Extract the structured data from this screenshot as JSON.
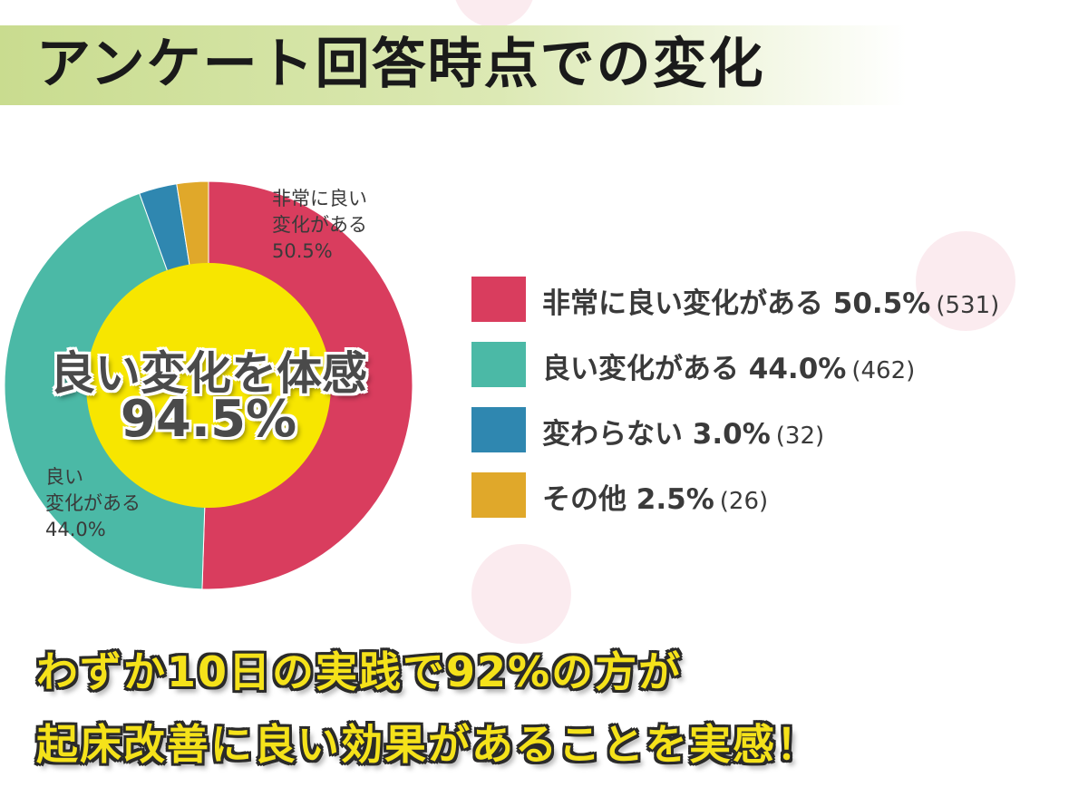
{
  "title": "アンケート回答時点での変化",
  "chart_data": {
    "type": "pie",
    "title": "",
    "slices": [
      {
        "label": "非常に良い変化がある",
        "percent_text": "50.5%",
        "count_text": "(531)",
        "value": 50.5,
        "count": 531,
        "color": "#d93d5e"
      },
      {
        "label": "良い変化がある",
        "percent_text": "44.0%",
        "count_text": "(462)",
        "value": 44.0,
        "count": 462,
        "color": "#4bb9a6"
      },
      {
        "label": "変わらない",
        "percent_text": "3.0%",
        "count_text": "(32)",
        "value": 3.0,
        "count": 32,
        "color": "#2f87b0"
      },
      {
        "label": "その他",
        "percent_text": "2.5%",
        "count_text": "(26)",
        "value": 2.5,
        "count": 26,
        "color": "#e0a82a"
      }
    ],
    "slice_labels": [
      {
        "text": "非常に良い\n変化がある\n50.5%"
      },
      {
        "text": "良い\n変化がある\n44.0%"
      }
    ],
    "center": {
      "line1": "良い変化を体感",
      "line2": "94.5%",
      "color": "#f7e600"
    },
    "legend_position": "right"
  },
  "legend": [
    {
      "text": "非常に良い変化がある 50.5%",
      "count": "(531)",
      "color": "#d93d5e"
    },
    {
      "text": "良い変化がある 44.0%",
      "count": "(462)",
      "color": "#4bb9a6"
    },
    {
      "text": "変わらない 3.0%",
      "count": "(32)",
      "color": "#2f87b0"
    },
    {
      "text": "その他 2.5%",
      "count": "(26)",
      "color": "#e0a82a"
    }
  ],
  "conclusion": {
    "line1": "わずか10日の実践で92%の方が",
    "line2": "起床改善に良い効果があることを実感！"
  }
}
